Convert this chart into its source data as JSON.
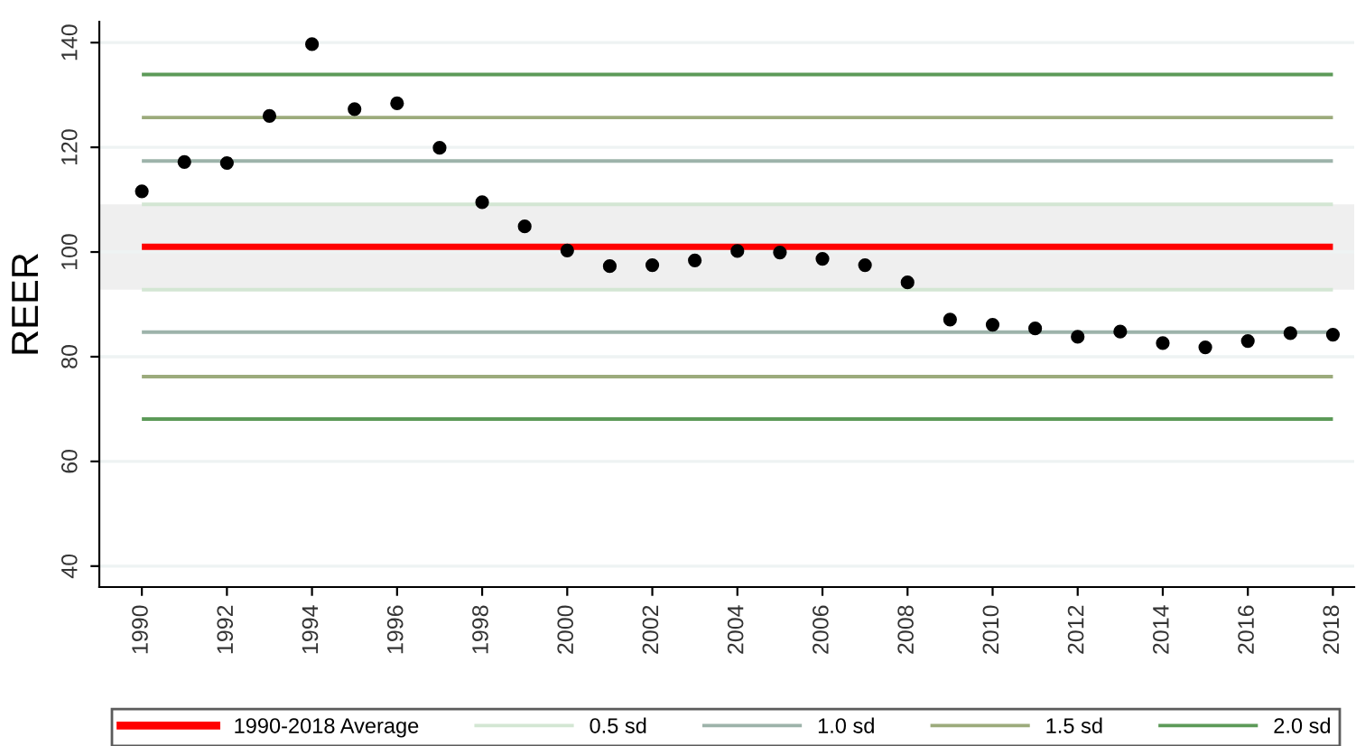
{
  "chart_data": {
    "type": "scatter",
    "ylabel": "REER",
    "x": [
      1990,
      1991,
      1992,
      1993,
      1994,
      1995,
      1996,
      1997,
      1998,
      1999,
      2000,
      2001,
      2002,
      2003,
      2004,
      2005,
      2006,
      2007,
      2008,
      2009,
      2010,
      2011,
      2012,
      2013,
      2014,
      2015,
      2016,
      2017,
      2018
    ],
    "series": [
      {
        "color": "#000000",
        "values": [
          111.6,
          117.2,
          117.0,
          126.0,
          139.7,
          127.3,
          128.4,
          119.9,
          109.5,
          104.9,
          100.3,
          97.3,
          97.5,
          98.4,
          100.2,
          99.9,
          98.7,
          97.5,
          94.2,
          87.1,
          86.1,
          85.4,
          83.8,
          84.8,
          82.6,
          81.8,
          83.0,
          84.5,
          84.2
        ]
      }
    ],
    "marker": "circle",
    "xlim": [
      1989,
      2018.5
    ],
    "xticks": [
      1990,
      1992,
      1994,
      1996,
      1998,
      2000,
      2002,
      2004,
      2006,
      2008,
      2010,
      2012,
      2014,
      2016,
      2018
    ],
    "ylim": [
      36,
      144
    ],
    "yticks": [
      40,
      60,
      80,
      100,
      120,
      140
    ],
    "grid": "y",
    "bands": [
      {
        "axis": "y",
        "from": 92.8,
        "to": 109.1,
        "color": "#efefef"
      }
    ],
    "ref_lines": [
      {
        "axis": "y",
        "value": 101.0,
        "label": "1990-2018 Average",
        "color": "#ff0000"
      },
      {
        "axis": "y",
        "value": 109.1,
        "label": "0.5 sd",
        "color": "#d3e6d3"
      },
      {
        "axis": "y",
        "value": 92.8,
        "color": "#d3e6d3"
      },
      {
        "axis": "y",
        "value": 117.4,
        "label": "1.0 sd",
        "color": "#9db3aa"
      },
      {
        "axis": "y",
        "value": 84.7,
        "color": "#9db3aa"
      },
      {
        "axis": "y",
        "value": 125.7,
        "label": "1.5 sd",
        "color": "#9cab7c"
      },
      {
        "axis": "y",
        "value": 76.2,
        "color": "#9cab7c"
      },
      {
        "axis": "y",
        "value": 133.9,
        "label": "2.0 sd",
        "color": "#5c9a58"
      },
      {
        "axis": "y",
        "value": 68.1,
        "color": "#5c9a58"
      }
    ],
    "legend": "bottom"
  }
}
